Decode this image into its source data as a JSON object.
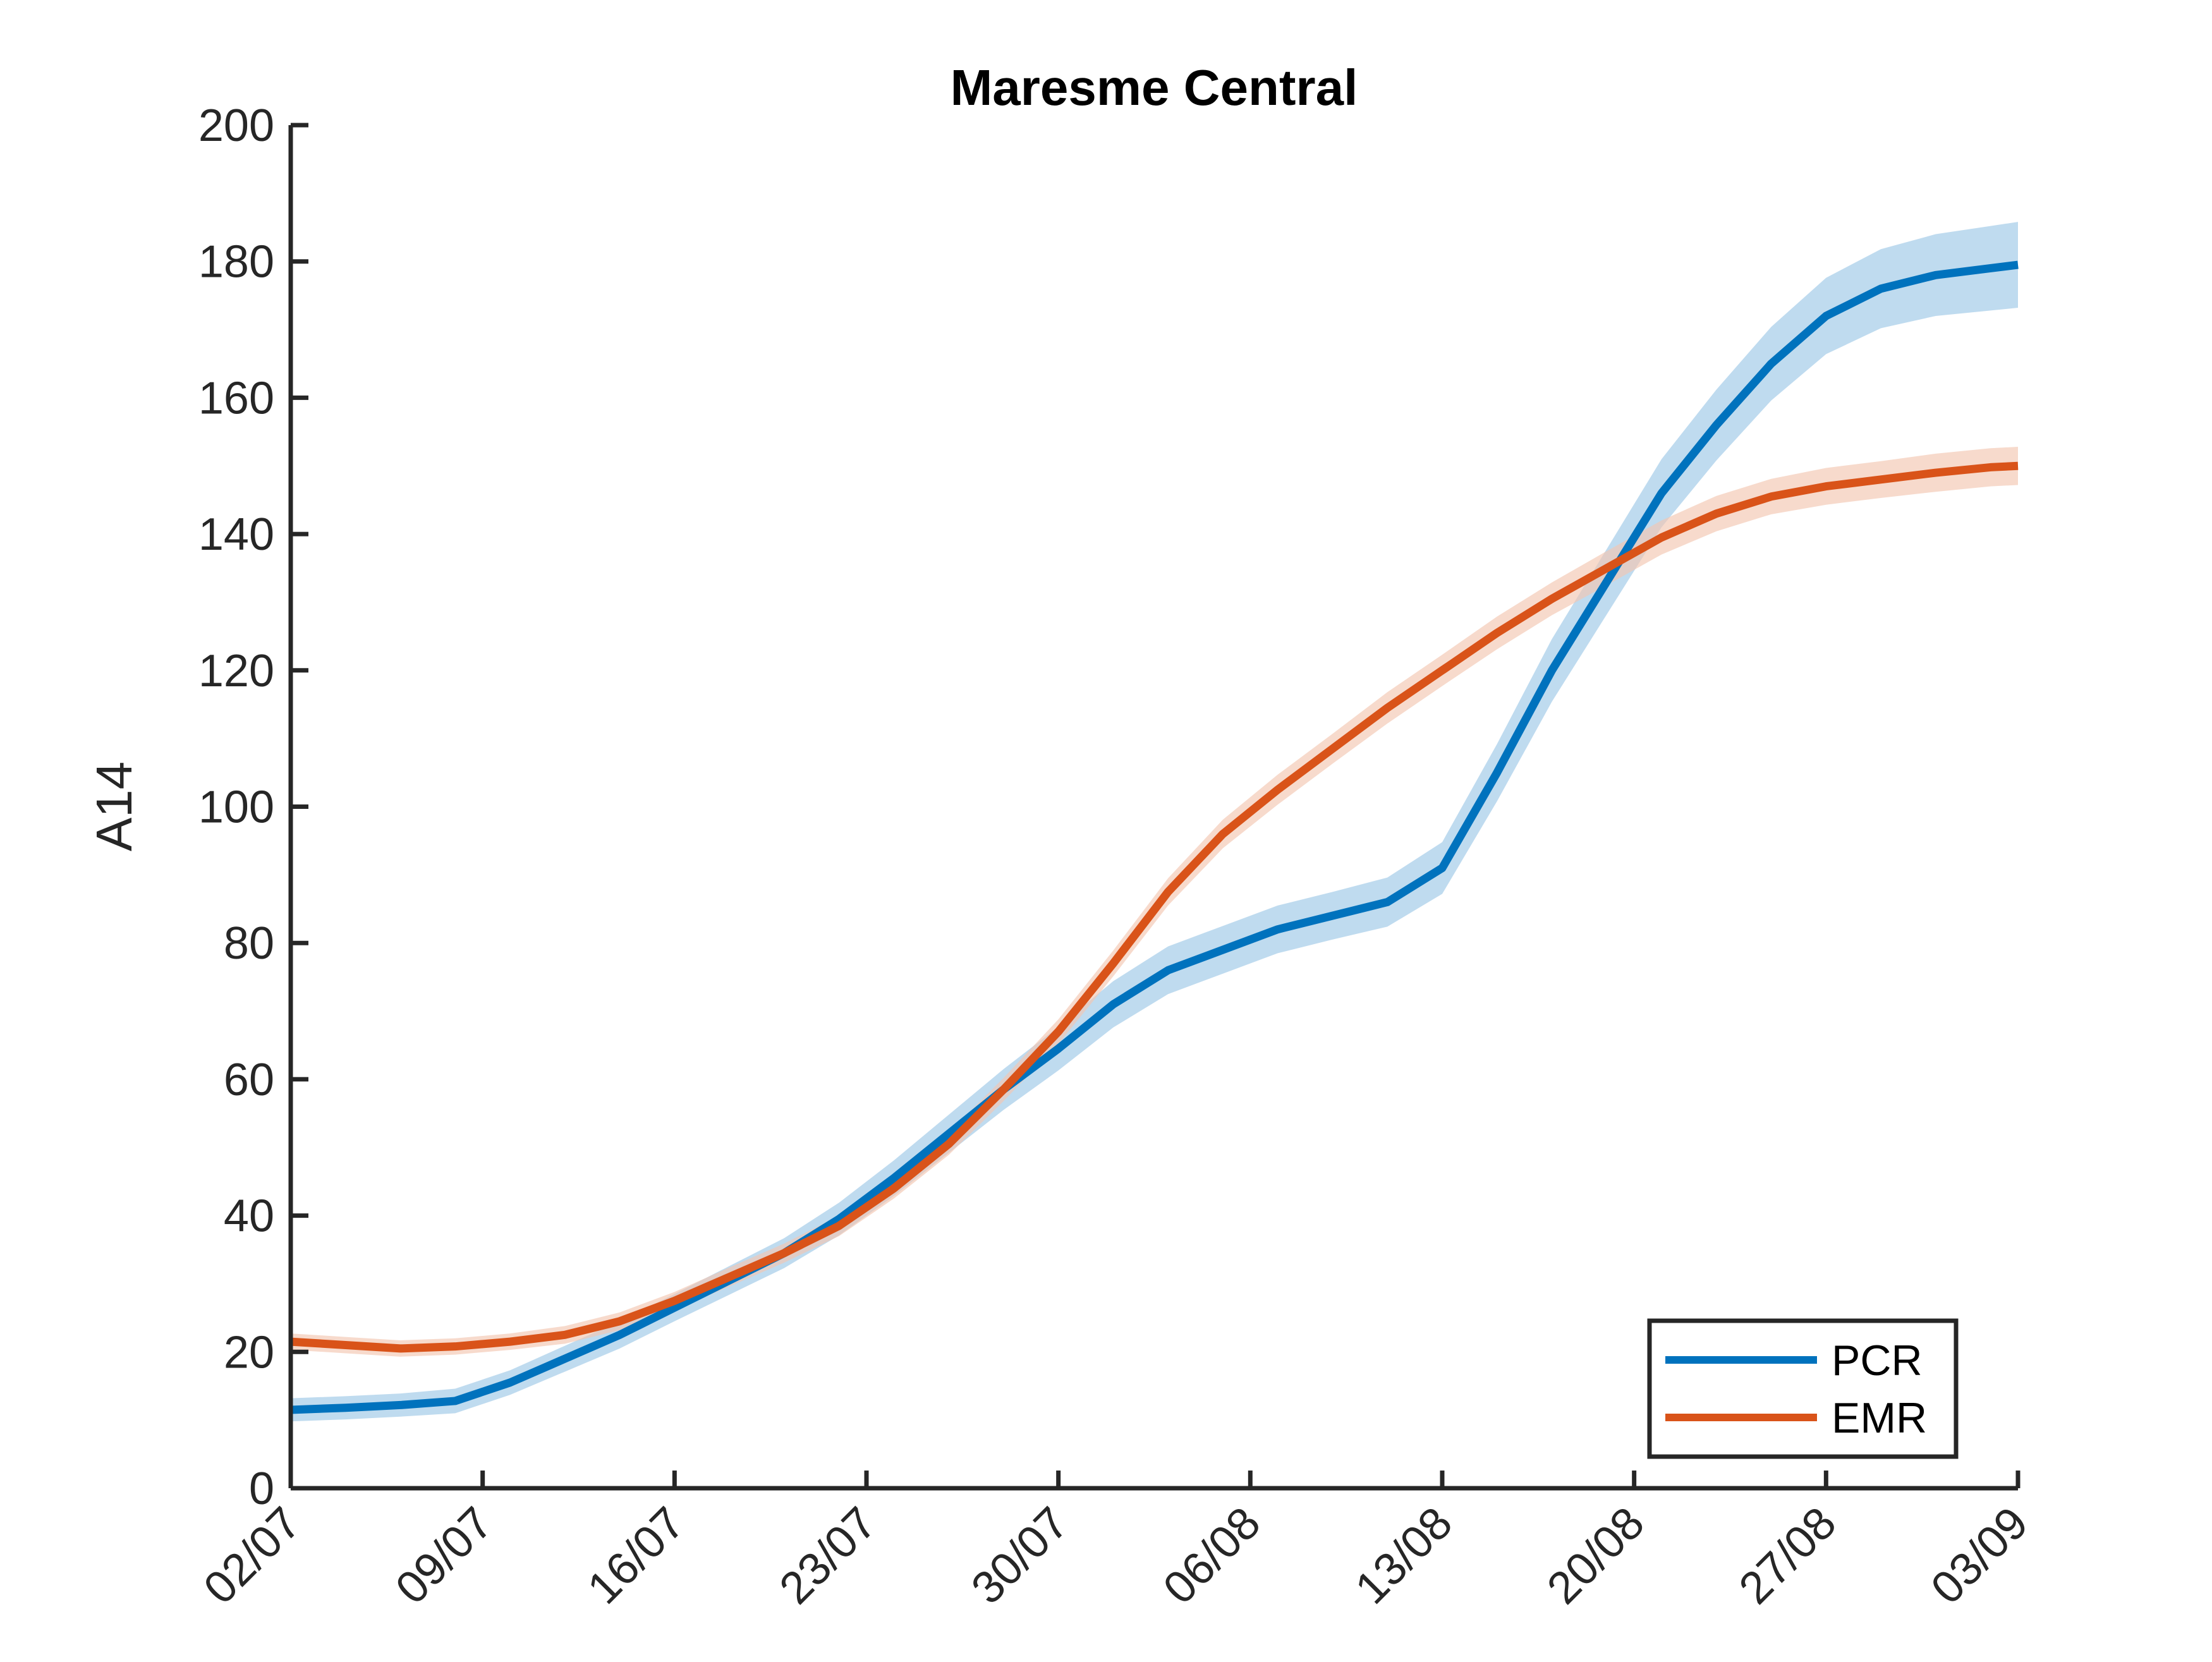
{
  "chart_data": {
    "type": "line",
    "title": "Maresme Central",
    "xlabel": "",
    "ylabel": "A14",
    "ylim": [
      0,
      200
    ],
    "xlim": [
      "02/07",
      "03/09"
    ],
    "yticks": [
      "0",
      "20",
      "40",
      "60",
      "80",
      "100",
      "120",
      "140",
      "160",
      "180",
      "200"
    ],
    "xticks": [
      "02/07",
      "09/07",
      "16/07",
      "23/07",
      "30/07",
      "06/08",
      "13/08",
      "20/08",
      "27/08",
      "03/09"
    ],
    "x": [
      "02/07",
      "04/07",
      "06/07",
      "08/07",
      "10/07",
      "12/07",
      "14/07",
      "16/07",
      "18/07",
      "20/07",
      "22/07",
      "24/07",
      "26/07",
      "28/07",
      "30/07",
      "01/08",
      "03/08",
      "05/08",
      "07/08",
      "09/08",
      "11/08",
      "13/08",
      "15/08",
      "17/08",
      "19/08",
      "21/08",
      "23/08",
      "25/08",
      "27/08",
      "29/08",
      "31/08",
      "02/09",
      "03/09"
    ],
    "grid": false,
    "legend_position": "bottom-right",
    "series": [
      {
        "name": "PCR",
        "color": "#0072BD",
        "band_color": "#9DC8E7",
        "values": [
          11.5,
          11.8,
          12.2,
          12.8,
          15.5,
          19.0,
          22.5,
          26.5,
          30.5,
          34.5,
          39.5,
          45.5,
          52.0,
          58.5,
          64.5,
          71.0,
          76.0,
          79.0,
          82.0,
          84.0,
          86.0,
          91.0,
          105.0,
          120.0,
          133.0,
          146.0,
          156.0,
          165.0,
          172.0,
          176.0,
          178.0,
          179.0,
          179.5
        ],
        "band_halfwidth": [
          1.7,
          1.7,
          1.7,
          1.8,
          1.8,
          1.9,
          2.0,
          2.0,
          2.1,
          2.2,
          2.4,
          2.6,
          2.8,
          3.0,
          3.2,
          3.4,
          3.5,
          3.5,
          3.5,
          3.5,
          3.6,
          3.8,
          4.2,
          4.6,
          4.8,
          5.0,
          5.2,
          5.4,
          5.6,
          5.8,
          6.0,
          6.2,
          6.3
        ]
      },
      {
        "name": "EMR",
        "color": "#D95319",
        "band_color": "#F3C6B1",
        "values": [
          21.5,
          21.0,
          20.5,
          20.8,
          21.5,
          22.5,
          24.5,
          27.5,
          31.0,
          34.5,
          38.5,
          44.0,
          50.5,
          58.5,
          67.0,
          77.0,
          87.5,
          96.0,
          102.5,
          108.5,
          114.5,
          120.0,
          125.5,
          130.5,
          135.0,
          139.5,
          143.0,
          145.5,
          147.0,
          148.0,
          149.0,
          149.8,
          150.0
        ],
        "band_halfwidth": [
          1.2,
          1.2,
          1.2,
          1.2,
          1.2,
          1.3,
          1.3,
          1.3,
          1.4,
          1.4,
          1.5,
          1.5,
          1.6,
          1.7,
          1.8,
          1.9,
          2.0,
          2.1,
          2.2,
          2.2,
          2.3,
          2.3,
          2.4,
          2.4,
          2.5,
          2.5,
          2.6,
          2.6,
          2.7,
          2.7,
          2.8,
          2.8,
          2.8
        ]
      }
    ]
  }
}
